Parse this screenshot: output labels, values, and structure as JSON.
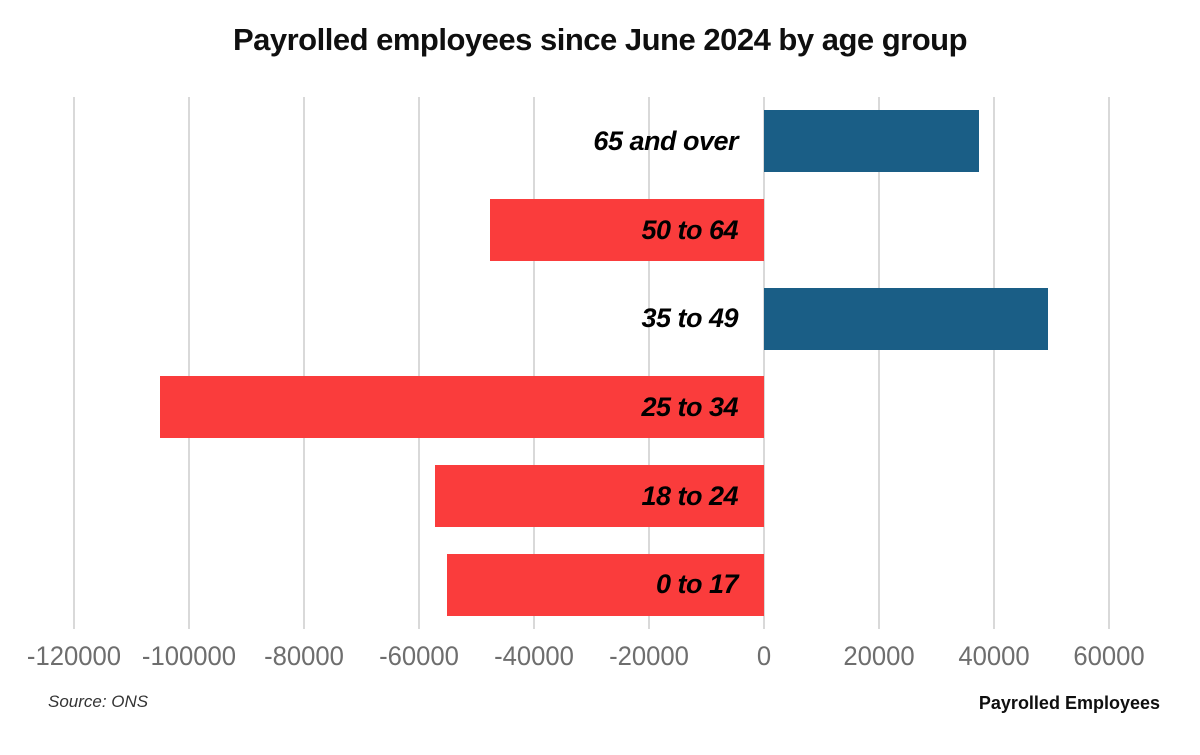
{
  "chart_data": {
    "type": "bar",
    "orientation": "horizontal",
    "title": "Payrolled employees since June 2024 by age group",
    "categories": [
      "65 and over",
      "50 to 64",
      "35 to 49",
      "25 to 34",
      "18 to 24",
      "0 to 17"
    ],
    "values": [
      37400,
      -47600,
      49400,
      -105000,
      -57200,
      -55100
    ],
    "xlabel": "Payrolled Employees",
    "ylabel": "",
    "xlim": [
      -120000,
      60000
    ],
    "x_ticks": [
      -120000,
      -100000,
      -80000,
      -60000,
      -40000,
      -20000,
      0,
      20000,
      40000,
      60000
    ],
    "grid": "vertical",
    "legend": "none",
    "positive_color": "#1a5e86",
    "negative_color": "#fa3c3c",
    "gridline_color": "#d9d9d9",
    "tick_color": "#6e6e6e"
  },
  "footer": {
    "source": "Source: ONS",
    "axis_title": "Payrolled Employees"
  }
}
